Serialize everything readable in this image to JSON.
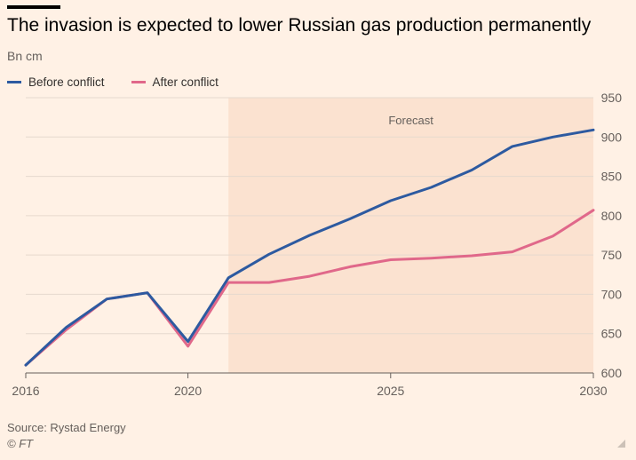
{
  "chart_data": {
    "type": "line",
    "title": "The invasion is expected to lower Russian gas production permanently",
    "subtitle": "Bn cm",
    "x": [
      2016,
      2017,
      2018,
      2019,
      2020,
      2021,
      2022,
      2023,
      2024,
      2025,
      2026,
      2027,
      2028,
      2029,
      2030
    ],
    "series": [
      {
        "name": "Before conflict",
        "color": "#2d5aa0",
        "values": [
          610,
          658,
          694,
          702,
          640,
          721,
          751,
          775,
          796,
          819,
          836,
          858,
          888,
          900,
          909
        ]
      },
      {
        "name": "After conflict",
        "color": "#e0688a",
        "values": [
          610,
          655,
          694,
          702,
          634,
          715,
          715,
          723,
          735,
          744,
          746,
          749,
          754,
          774,
          807
        ]
      }
    ],
    "xlim": [
      2016,
      2030
    ],
    "ylim": [
      600,
      950
    ],
    "xticks": [
      2016,
      2020,
      2025,
      2030
    ],
    "yticks": [
      600,
      650,
      700,
      750,
      800,
      850,
      900,
      950
    ],
    "forecast_band": {
      "from": 2021,
      "to": 2030,
      "label": "Forecast",
      "color": "#fbe2d0"
    },
    "grid": true,
    "legend_position": "top-left",
    "source": "Source: Rystad Energy",
    "copyright": "© FT"
  }
}
